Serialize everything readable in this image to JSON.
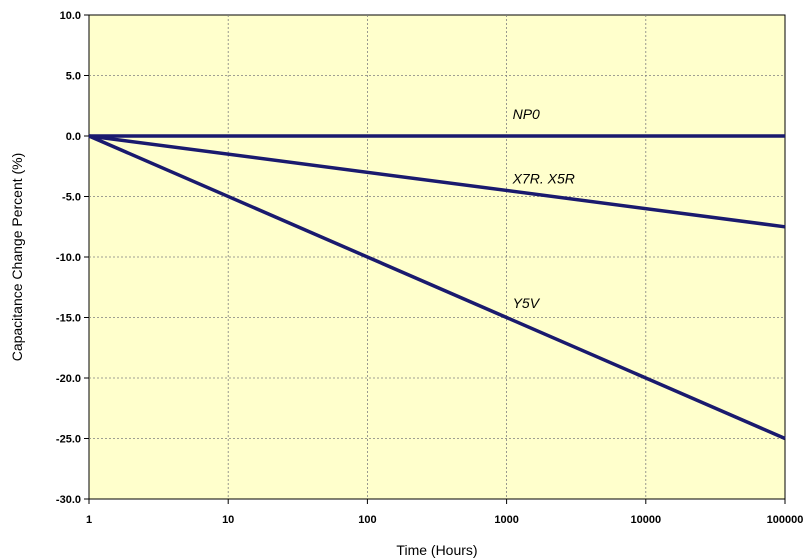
{
  "chart_data": {
    "type": "line",
    "title": "",
    "xlabel": "Time (Hours)",
    "ylabel": "Capacitance Change Percent (%)",
    "xscale": "log",
    "xlim": [
      1,
      100000
    ],
    "ylim": [
      -30,
      10
    ],
    "x_ticks": [
      "1",
      "10",
      "100",
      "1000",
      "10000",
      "100000"
    ],
    "y_ticks": [
      "10.0",
      "5.0",
      "0.0",
      "-5.0",
      "-10.0",
      "-15.0",
      "-20.0",
      "-25.0",
      "-30.0"
    ],
    "grid": true,
    "plot_background": "#ffffcc",
    "line_color": "#1a1a6e",
    "series": [
      {
        "name": "NP0",
        "x": [
          1,
          100000
        ],
        "y": [
          0,
          0
        ],
        "label_at": [
          1000,
          1.8
        ]
      },
      {
        "name": "X7R. X5R",
        "x": [
          1,
          100000
        ],
        "y": [
          0,
          -7.5
        ],
        "label_at": [
          1000,
          -3.5
        ]
      },
      {
        "name": "Y5V",
        "x": [
          1,
          100000
        ],
        "y": [
          0,
          -25
        ],
        "label_at": [
          1000,
          -13.8
        ]
      }
    ]
  }
}
